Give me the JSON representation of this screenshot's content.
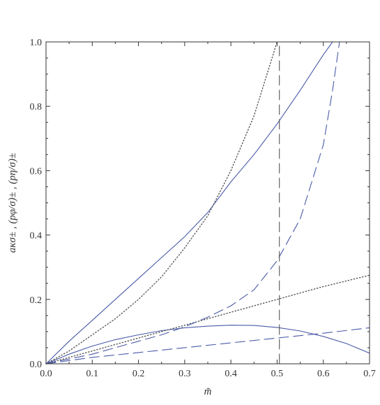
{
  "chart_data": {
    "type": "line",
    "xlabel": "m̃",
    "ylabel": "aκσ± , (pφ/σ)± , (pη/σ)±",
    "xlim": [
      0,
      0.7
    ],
    "ylim": [
      0,
      1.0
    ],
    "x_ticks": [
      "0.0",
      "0.1",
      "0.2",
      "0.3",
      "0.4",
      "0.5",
      "0.6",
      "0.7"
    ],
    "y_ticks": [
      "0.0",
      "0.2",
      "0.4",
      "0.6",
      "0.8",
      "1.0"
    ],
    "grid": false,
    "colors": {
      "blue": "#4a5aa8",
      "gray": "#555555"
    },
    "series": [
      {
        "style": "solid",
        "color": "#4a5aa8",
        "x": [
          0,
          0.05,
          0.1,
          0.15,
          0.2,
          0.25,
          0.3,
          0.35,
          0.4,
          0.45,
          0.5,
          0.55,
          0.6,
          0.62
        ],
        "y": [
          0,
          0.07,
          0.135,
          0.2,
          0.265,
          0.33,
          0.395,
          0.47,
          0.565,
          0.65,
          0.745,
          0.85,
          0.96,
          1.0
        ]
      },
      {
        "style": "solid",
        "color": "#4a5aa8",
        "x": [
          0,
          0.05,
          0.1,
          0.15,
          0.2,
          0.25,
          0.3,
          0.35,
          0.4,
          0.45,
          0.5,
          0.55,
          0.6,
          0.65,
          0.7
        ],
        "y": [
          0,
          0.03,
          0.055,
          0.075,
          0.09,
          0.103,
          0.112,
          0.117,
          0.12,
          0.119,
          0.113,
          0.102,
          0.085,
          0.063,
          0.033
        ]
      },
      {
        "style": "dotted",
        "color": "#555555",
        "x": [
          0,
          0.05,
          0.1,
          0.15,
          0.2,
          0.25,
          0.3,
          0.35,
          0.4,
          0.45,
          0.5
        ],
        "y": [
          0,
          0.04,
          0.09,
          0.14,
          0.2,
          0.27,
          0.36,
          0.46,
          0.6,
          0.77,
          1.0
        ]
      },
      {
        "style": "dotted",
        "color": "#555555",
        "x": [
          0,
          0.1,
          0.2,
          0.3,
          0.4,
          0.5,
          0.6,
          0.7
        ],
        "y": [
          0,
          0.04,
          0.08,
          0.12,
          0.16,
          0.2,
          0.24,
          0.275
        ]
      },
      {
        "style": "dashed",
        "color": "#4a5aa8",
        "x": [
          0,
          0.05,
          0.1,
          0.15,
          0.2,
          0.25,
          0.3,
          0.35,
          0.4,
          0.45,
          0.5,
          0.55,
          0.6,
          0.62,
          0.635
        ],
        "y": [
          0,
          0.015,
          0.03,
          0.05,
          0.07,
          0.09,
          0.115,
          0.145,
          0.18,
          0.23,
          0.32,
          0.45,
          0.68,
          0.85,
          1.0
        ]
      },
      {
        "style": "dashed",
        "color": "#4a5aa8",
        "x": [
          0,
          0.1,
          0.2,
          0.3,
          0.4,
          0.5,
          0.6,
          0.7
        ],
        "y": [
          0,
          0.02,
          0.035,
          0.05,
          0.065,
          0.08,
          0.095,
          0.112
        ]
      },
      {
        "style": "dashed",
        "color": "#555555",
        "x": [
          0.505,
          0.505
        ],
        "y": [
          0,
          1.0
        ]
      }
    ]
  }
}
